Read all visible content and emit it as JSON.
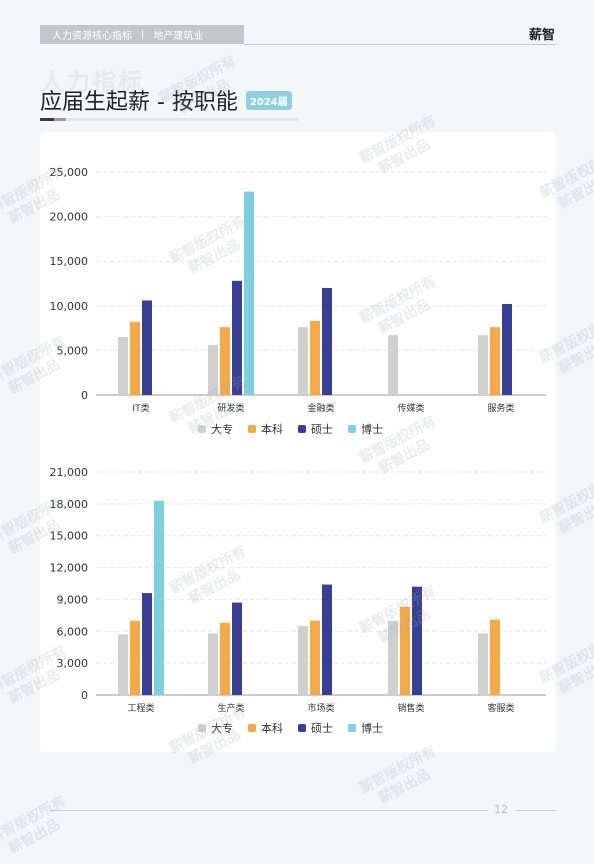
{
  "header": {
    "seg1": "人力资源核心指标",
    "sep": "|",
    "seg2": "地产建筑业",
    "brand": "薪智"
  },
  "page": {
    "bg_title": "人力指标",
    "title": "应届生起薪 - 按职能",
    "badge": "2024届",
    "page_number": "12"
  },
  "watermark": {
    "line1": "薪智版权所有",
    "line2": "薪智出品"
  },
  "colors": {
    "大专": "#d0d0d0",
    "本科": "#f5a947",
    "硕士": "#3a3f96",
    "博士": "#7fd0df"
  },
  "chart_data": [
    {
      "type": "bar",
      "categories": [
        "IT类",
        "研发类",
        "金融类",
        "传媒类",
        "服务类"
      ],
      "series": [
        {
          "name": "大专",
          "values": [
            6500,
            5600,
            7600,
            6700,
            6700
          ]
        },
        {
          "name": "本科",
          "values": [
            8200,
            7600,
            8300,
            null,
            7600
          ]
        },
        {
          "name": "硕士",
          "values": [
            10600,
            12800,
            12000,
            null,
            10200
          ]
        },
        {
          "name": "博士",
          "values": [
            null,
            22800,
            null,
            null,
            null
          ]
        }
      ],
      "yticks": [
        "0",
        "5,000",
        "10,000",
        "15,000",
        "20,000",
        "25,000"
      ],
      "ylim": [
        0,
        25000
      ],
      "grid": true,
      "legend": "bottom"
    },
    {
      "type": "bar",
      "categories": [
        "工程类",
        "生产类",
        "市场类",
        "销售类",
        "客服类"
      ],
      "series": [
        {
          "name": "大专",
          "values": [
            5700,
            5800,
            6500,
            7000,
            5800
          ]
        },
        {
          "name": "本科",
          "values": [
            7000,
            6800,
            7000,
            8300,
            7100
          ]
        },
        {
          "name": "硕士",
          "values": [
            9600,
            8700,
            10400,
            10200,
            null
          ]
        },
        {
          "name": "博士",
          "values": [
            18300,
            null,
            null,
            null,
            null
          ]
        }
      ],
      "yticks": [
        "0",
        "3,000",
        "6,000",
        "9,000",
        "12,000",
        "15,000",
        "18,000",
        "21,000"
      ],
      "ylim": [
        0,
        21000
      ],
      "grid": true,
      "legend": "bottom"
    }
  ]
}
